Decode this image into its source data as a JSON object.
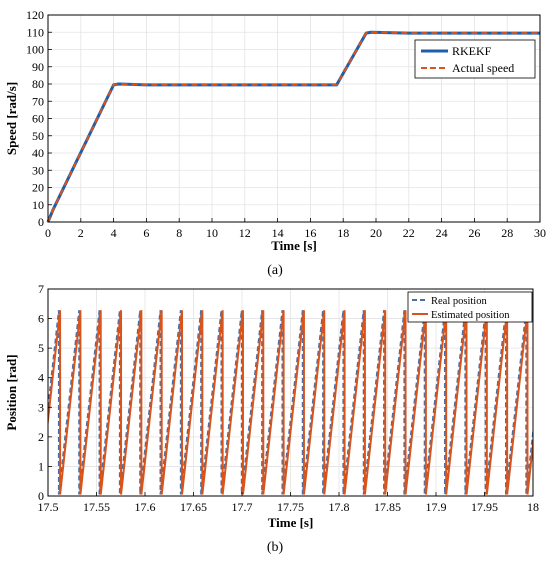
{
  "colors": {
    "rkekf": "#1f5faa",
    "actual": "#d9541a",
    "real_position": "#4a6ea8",
    "estimated_position": "#d9541a",
    "grid": "#e3e3e3"
  },
  "chart_data": [
    {
      "type": "line",
      "caption": "(a)",
      "xlabel": "Time [s]",
      "ylabel": "Speed [rad/s]",
      "xlim": [
        0,
        30
      ],
      "ylim": [
        0,
        120
      ],
      "xticks": [
        0,
        2,
        4,
        6,
        8,
        10,
        12,
        14,
        16,
        18,
        20,
        22,
        24,
        26,
        28,
        30
      ],
      "yticks": [
        0,
        10,
        20,
        30,
        40,
        50,
        60,
        70,
        80,
        90,
        100,
        110,
        120
      ],
      "grid": true,
      "legend_position": "top-right",
      "series": [
        {
          "name": "RKEKF",
          "style": "solid",
          "x": [
            0,
            0.3,
            4.0,
            4.3,
            6,
            10,
            14,
            17.6,
            19.4,
            19.7,
            22,
            26,
            30
          ],
          "y": [
            0,
            7,
            79.5,
            80,
            79.5,
            79.5,
            79.5,
            79.5,
            109.5,
            110,
            109.5,
            109.5,
            109.5
          ]
        },
        {
          "name": "Actual speed",
          "style": "dashed",
          "x": [
            0,
            0.3,
            4.0,
            4.3,
            6,
            10,
            14,
            17.6,
            19.4,
            19.7,
            22,
            26,
            30
          ],
          "y": [
            0,
            7,
            79.5,
            80,
            79.5,
            79.5,
            79.5,
            79.5,
            109.5,
            110,
            109.5,
            109.5,
            109.5
          ]
        }
      ]
    },
    {
      "type": "line",
      "caption": "(b)",
      "xlabel": "Time [s]",
      "ylabel": "Position [rad]",
      "xlim": [
        17.5,
        18
      ],
      "ylim": [
        0,
        7
      ],
      "xticks": [
        17.5,
        17.55,
        17.6,
        17.65,
        17.7,
        17.75,
        17.8,
        17.85,
        17.9,
        17.95,
        18
      ],
      "xtick_labels": [
        "17.5",
        "17.55",
        "17.6",
        "17.65",
        "17.7",
        "17.75",
        "17.8",
        "17.85",
        "17.9",
        "17.95",
        "18"
      ],
      "yticks": [
        0,
        1,
        2,
        3,
        4,
        5,
        6,
        7
      ],
      "grid": true,
      "legend_position": "top-right",
      "sawtooth": {
        "period_s": 0.02095,
        "amplitude_rad": 6.28,
        "start_s": 17.4915
      },
      "series": [
        {
          "name": "Real position",
          "style": "dashed"
        },
        {
          "name": "Estimated position",
          "style": "solid"
        }
      ]
    }
  ]
}
